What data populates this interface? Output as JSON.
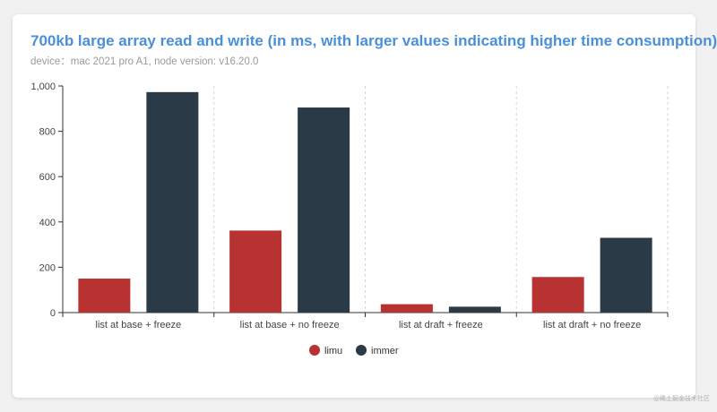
{
  "chart_data": {
    "type": "bar",
    "title": "700kb large array read and write (in ms, with larger values indicating higher time consumption)",
    "subtitle": "device：mac 2021 pro A1, node version: v16.20.0",
    "categories": [
      "list at base + freeze",
      "list at base + no freeze",
      "list at draft + freeze",
      "list at draft + no freeze"
    ],
    "series": [
      {
        "name": "limu",
        "color": "#b83232",
        "values": [
          150,
          362,
          37,
          157
        ]
      },
      {
        "name": "immer",
        "color": "#2a3a47",
        "values": [
          973,
          905,
          26,
          330
        ]
      }
    ],
    "yticks": [
      "0",
      "200",
      "400",
      "600",
      "800",
      "1,000"
    ],
    "ylim": [
      0,
      1000
    ],
    "grid": false,
    "legend_position": "bottom-center"
  },
  "watermark": "@稀土掘金技术社区"
}
